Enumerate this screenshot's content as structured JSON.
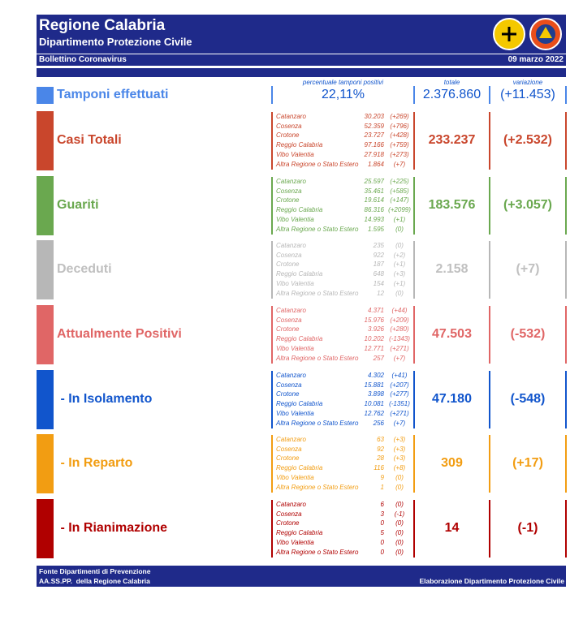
{
  "header": {
    "title": "Regione Calabria",
    "subtitle": "Dipartimento Protezione Civile",
    "bulletin": "Bollettino Coronavirus",
    "date": "09 marzo 2022"
  },
  "tamponi": {
    "label": "Tamponi effettuati",
    "caption_percent": "percentuale tamponi positivi",
    "caption_total": "totale",
    "caption_change": "variazione",
    "percent": "22,11%",
    "total": "2.376.860",
    "change": "(+11.453)"
  },
  "sections": [
    {
      "label": "Casi Totali",
      "color": "#c9462c",
      "rows": [
        [
          "Catanzaro",
          "30.203",
          "(+269)"
        ],
        [
          "Cosenza",
          "52.359",
          "(+796)"
        ],
        [
          "Crotone",
          "23.727",
          "(+428)"
        ],
        [
          "Reggio Calabria",
          "97.166",
          "(+759)"
        ],
        [
          "Vibo Valentia",
          "27.918",
          "(+273)"
        ],
        [
          "Altra Regione o Stato Estero",
          "1.864",
          "(+7)"
        ]
      ],
      "total": "233.237",
      "change": "(+2.532)"
    },
    {
      "label": "Guariti",
      "color": "#6aa84f",
      "rows": [
        [
          "Catanzaro",
          "25.597",
          "(+225)"
        ],
        [
          "Cosenza",
          "35.461",
          "(+585)"
        ],
        [
          "Crotone",
          "19.614",
          "(+147)"
        ],
        [
          "Reggio Calabria",
          "86.316",
          "(+2099)"
        ],
        [
          "Vibo Valentia",
          "14.993",
          "(+1)"
        ],
        [
          "Altra Regione o Stato Estero",
          "1.595",
          "(0)"
        ]
      ],
      "total": "183.576",
      "change": "(+3.057)"
    },
    {
      "label": "Deceduti",
      "color": "#b7b7b7",
      "rows": [
        [
          "Catanzaro",
          "235",
          "(0)"
        ],
        [
          "Cosenza",
          "922",
          "(+2)"
        ],
        [
          "Crotone",
          "187",
          "(+1)"
        ],
        [
          "Reggio Calabria",
          "648",
          "(+3)"
        ],
        [
          "Vibo Valentia",
          "154",
          "(+1)"
        ],
        [
          "Altra Regione o Stato Estero",
          "12",
          "(0)"
        ]
      ],
      "total": "2.158",
      "change": "(+7)"
    },
    {
      "label": "Attualmente Positivi",
      "color": "#e06666",
      "rows": [
        [
          "Catanzaro",
          "4.371",
          "(+44)"
        ],
        [
          "Cosenza",
          "15.976",
          "(+209)"
        ],
        [
          "Crotone",
          "3.926",
          "(+280)"
        ],
        [
          "Reggio Calabria",
          "10.202",
          "(-1343)"
        ],
        [
          "Vibo Valentia",
          "12.771",
          "(+271)"
        ],
        [
          "Altra Regione o Stato Estero",
          "257",
          "(+7)"
        ]
      ],
      "total": "47.503",
      "change": "(-532)"
    },
    {
      "label": " - In Isolamento",
      "color": "#1155cc",
      "rows": [
        [
          "Catanzaro",
          "4.302",
          "(+41)"
        ],
        [
          "Cosenza",
          "15.881",
          "(+207)"
        ],
        [
          "Crotone",
          "3.898",
          "(+277)"
        ],
        [
          "Reggio Calabria",
          "10.081",
          "(-1351)"
        ],
        [
          "Vibo Valentia",
          "12.762",
          "(+271)"
        ],
        [
          "Altra Regione o Stato Estero",
          "256",
          "(+7)"
        ]
      ],
      "total": "47.180",
      "change": "(-548)"
    },
    {
      "label": " - In Reparto",
      "color": "#f29d12",
      "rows": [
        [
          "Catanzaro",
          "63",
          "(+3)"
        ],
        [
          "Cosenza",
          "92",
          "(+3)"
        ],
        [
          "Crotone",
          "28",
          "(+3)"
        ],
        [
          "Reggio Calabria",
          "116",
          "(+8)"
        ],
        [
          "Vibo Valentia",
          "9",
          "(0)"
        ],
        [
          "Altra Regione o Stato Estero",
          "1",
          "(0)"
        ]
      ],
      "total": "309",
      "change": "(+17)"
    },
    {
      "label": " - In Rianimazione",
      "color": "#b00000",
      "rows": [
        [
          "Catanzaro",
          "6",
          "(0)"
        ],
        [
          "Cosenza",
          "3",
          "(-1)"
        ],
        [
          "Crotone",
          "0",
          "(0)"
        ],
        [
          "Reggio Calabria",
          "5",
          "(0)"
        ],
        [
          "Vibo Valentia",
          "0",
          "(0)"
        ],
        [
          "Altra Regione o Stato Estero",
          "0",
          "(0)"
        ]
      ],
      "total": "14",
      "change": "(-1)"
    }
  ],
  "footer": {
    "source_1": "Fonte Dipartimenti di Prevenzione",
    "source_2": "AA.SS.PP.  della Regione Calabria",
    "credit": "Elaborazione Dipartimento Protezione Civile"
  }
}
